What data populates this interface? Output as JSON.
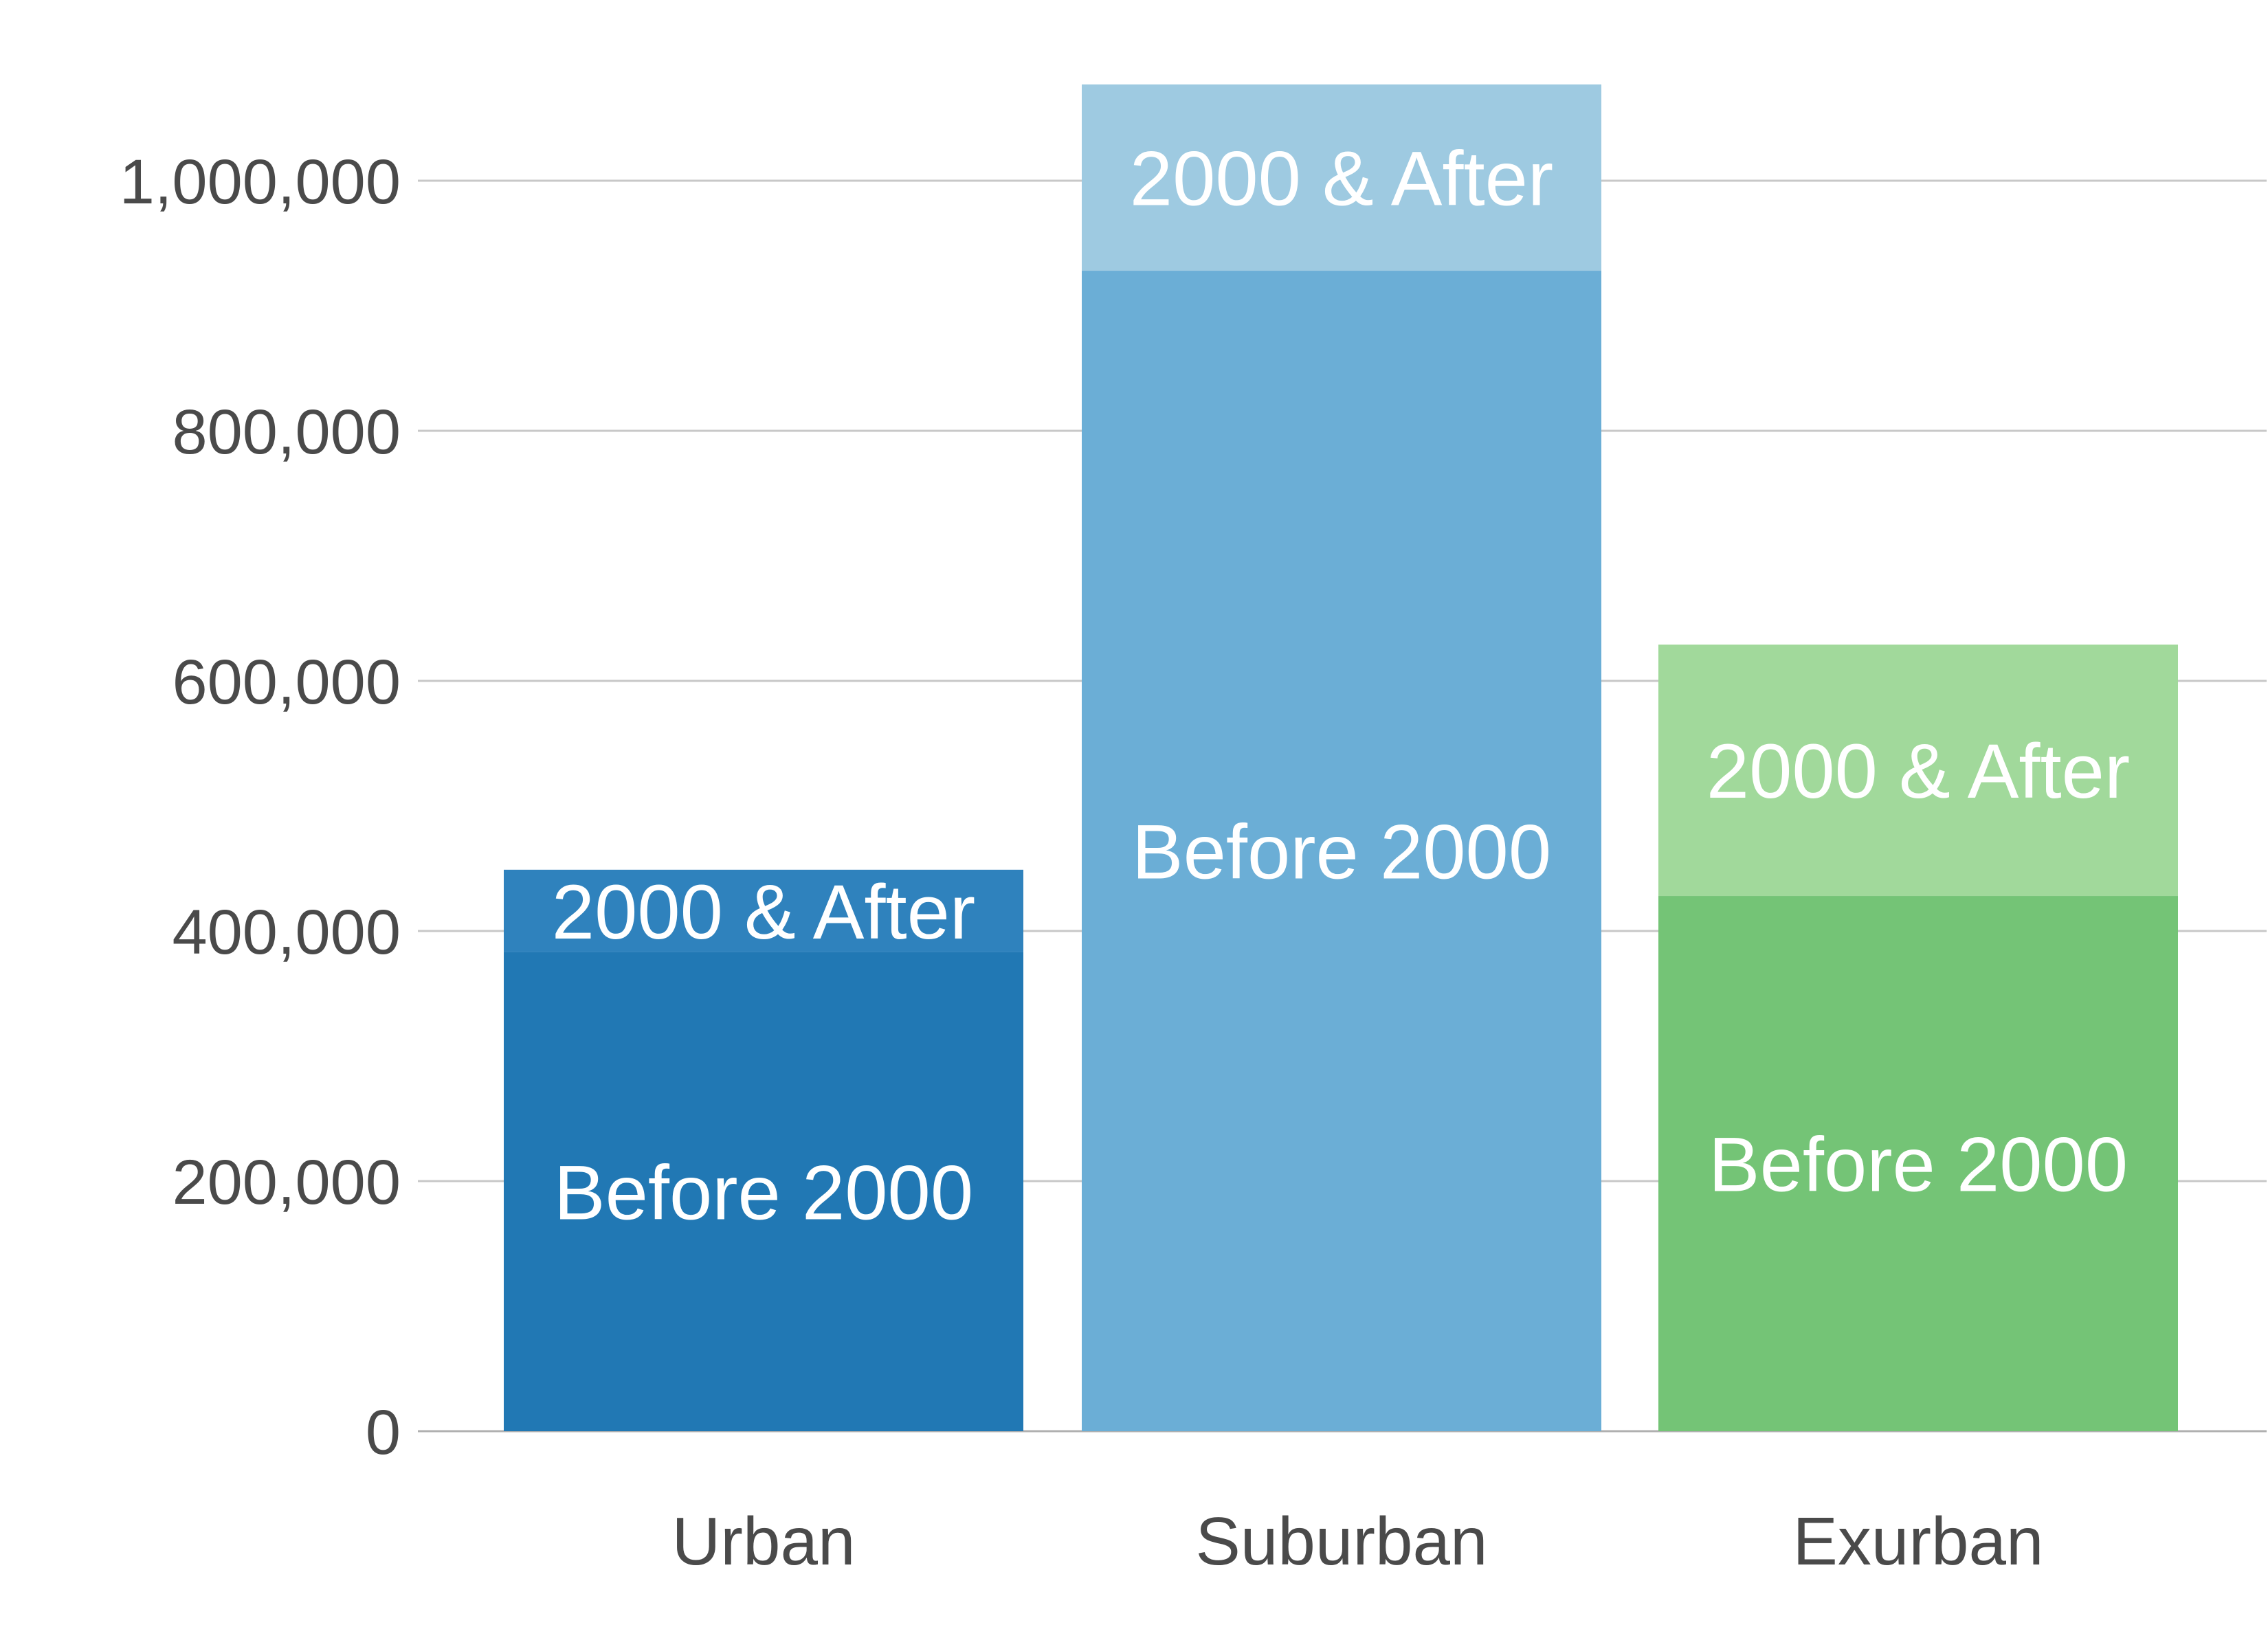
{
  "chart_data": {
    "type": "bar",
    "stacked": true,
    "categories": [
      "Urban",
      "Suburban",
      "Exurban"
    ],
    "series": [
      {
        "segment_label": "Before 2000",
        "values": [
          383000,
          928000,
          428000
        ],
        "colors": [
          "#2178b4",
          "#6baed6",
          "#74c476"
        ]
      },
      {
        "segment_label": "2000 & After",
        "values": [
          66000,
          149000,
          201000
        ],
        "colors": [
          "#2f82bd",
          "#9ecae1",
          "#a1d99b"
        ]
      }
    ],
    "ylim": [
      0,
      1080000
    ],
    "yticks": [
      0,
      200000,
      400000,
      600000,
      800000,
      1000000
    ],
    "ytick_labels": [
      "0",
      "200,000",
      "400,000",
      "600,000",
      "800,000",
      "1,000,000"
    ],
    "grid": true,
    "legend": "none"
  }
}
